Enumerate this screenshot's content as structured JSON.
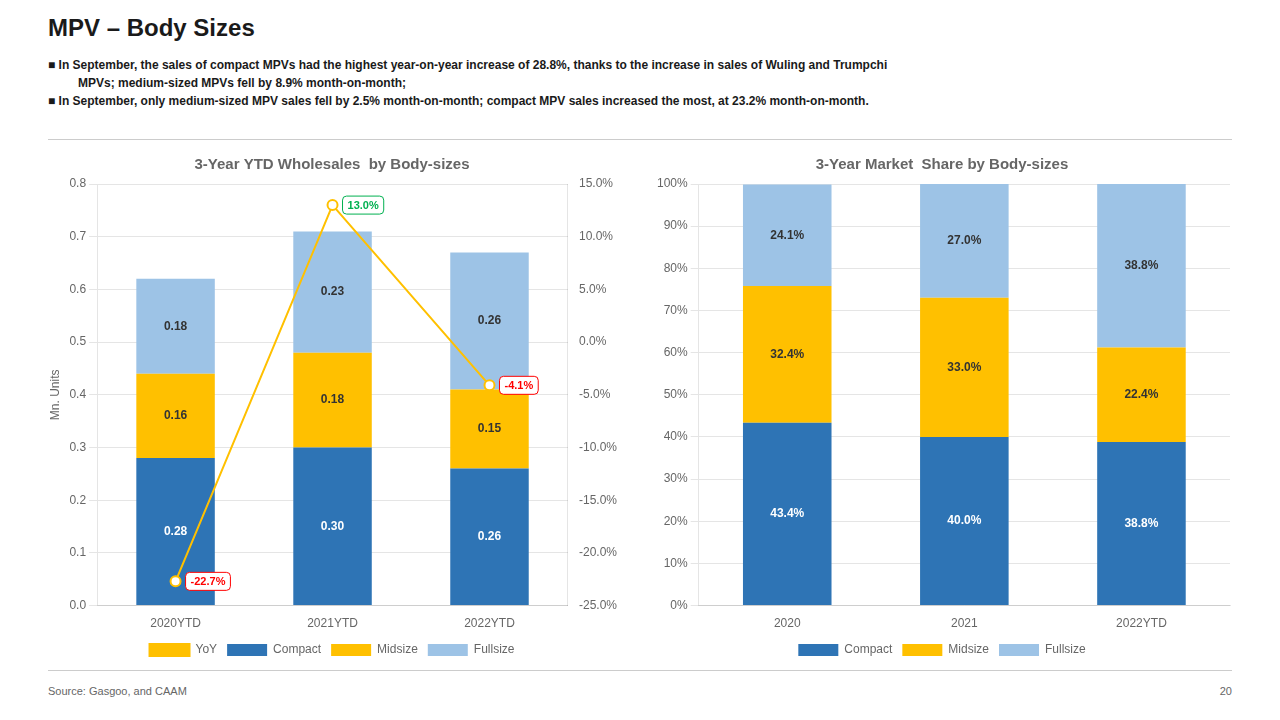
{
  "title": "MPV – Body Sizes",
  "notes": [
    [
      "■  In September, the sales of compact MPVs had the highest year-on-year increase of 28.8%, thanks to the increase in sales of Wuling and Trumpchi",
      "MPVs; medium-sized MPVs fell by 8.9% month-on-month;"
    ],
    [
      "■  In September, only medium-sized MPV sales fell by 2.5% month-on-month; compact MPV sales increased the most, at 23.2% month-on-month."
    ]
  ],
  "source": "Source: Gasgoo, and CAAM",
  "page_number": "20",
  "chart_data": [
    {
      "type": "bar",
      "stacked": true,
      "title": "3-Year YTD Wholesales  by Body-sizes",
      "ylabel": "Mn. Units",
      "categories": [
        "2020YTD",
        "2021YTD",
        "2022YTD"
      ],
      "series": [
        {
          "name": "Compact",
          "color": "#2E74B5",
          "values": [
            0.28,
            0.3,
            0.26
          ],
          "value_labels": [
            "0.28",
            "0.30",
            "0.26"
          ]
        },
        {
          "name": "Midsize",
          "color": "#FFC000",
          "values": [
            0.16,
            0.18,
            0.15
          ],
          "value_labels": [
            "0.16",
            "0.18",
            "0.15"
          ]
        },
        {
          "name": "Fullsize",
          "color": "#9DC3E6",
          "values": [
            0.18,
            0.23,
            0.26
          ],
          "value_labels": [
            "0.18",
            "0.23",
            "0.26"
          ]
        },
        {
          "name": "YoY",
          "type": "line",
          "axis": "y2",
          "color": "#FFC000",
          "marker": "o",
          "values": [
            -22.7,
            13.0,
            -4.1
          ],
          "value_labels": [
            "-22.7%",
            "13.0%",
            "-4.1%"
          ],
          "colors": [
            "#FF0000",
            "#00B050",
            "#FF0000"
          ]
        }
      ],
      "ylim": [
        0.0,
        0.8
      ],
      "yticks": [
        {
          "value": 0.0,
          "label": "0.0"
        },
        0.1,
        0.2,
        0.3,
        0.4,
        0.5,
        0.6,
        0.7,
        0.8
      ],
      "y2lim": [
        -25.0,
        15.0
      ],
      "y2ticks": [
        {
          "value": -25.0,
          "label": "-25.0%"
        },
        {
          "value": -20.0,
          "label": "-20.0%"
        },
        {
          "value": -15.0,
          "label": "-15.0%"
        },
        {
          "value": -10.0,
          "label": "-10.0%"
        },
        {
          "value": -5.0,
          "label": "-5.0%"
        },
        {
          "value": 0.0,
          "label": "0.0%"
        },
        {
          "value": 5.0,
          "label": "5.0%"
        },
        {
          "value": 10.0,
          "label": "10.0%"
        },
        {
          "value": 15.0,
          "label": "15.0%"
        }
      ],
      "grid": true,
      "legend": "bottom",
      "data_labels": true
    },
    {
      "type": "bar",
      "stacked": true,
      "title": "3-Year Market  Share by Body-sizes",
      "categories": [
        "2020",
        "2021",
        "2022YTD"
      ],
      "series": [
        {
          "name": "Compact",
          "color": "#2E74B5",
          "values": [
            43.4,
            40.0,
            38.8
          ],
          "value_labels": [
            "43.4%",
            "40.0%",
            "38.8%"
          ]
        },
        {
          "name": "Midsize",
          "color": "#FFC000",
          "values": [
            32.4,
            33.0,
            22.4
          ],
          "value_labels": [
            "32.4%",
            "33.0%",
            "22.4%"
          ]
        },
        {
          "name": "Fullsize",
          "color": "#9DC3E6",
          "values": [
            24.1,
            27.0,
            38.8
          ],
          "value_labels": [
            "24.1%",
            "27.0%",
            "38.8%"
          ]
        }
      ],
      "ylim": [
        0,
        100
      ],
      "yticks": [
        {
          "value": 0,
          "label": "0%"
        },
        {
          "value": 10,
          "label": "10%"
        },
        {
          "value": 20,
          "label": "20%"
        },
        {
          "value": 30,
          "label": "30%"
        },
        {
          "value": 40,
          "label": "40%"
        },
        {
          "value": 50,
          "label": "50%"
        },
        {
          "value": 60,
          "label": "60%"
        },
        {
          "value": 70,
          "label": "70%"
        },
        {
          "value": 80,
          "label": "80%"
        },
        {
          "value": 90,
          "label": "90%"
        },
        {
          "value": 100,
          "label": "100%"
        }
      ],
      "grid": true,
      "legend": "bottom",
      "data_labels": true
    }
  ]
}
